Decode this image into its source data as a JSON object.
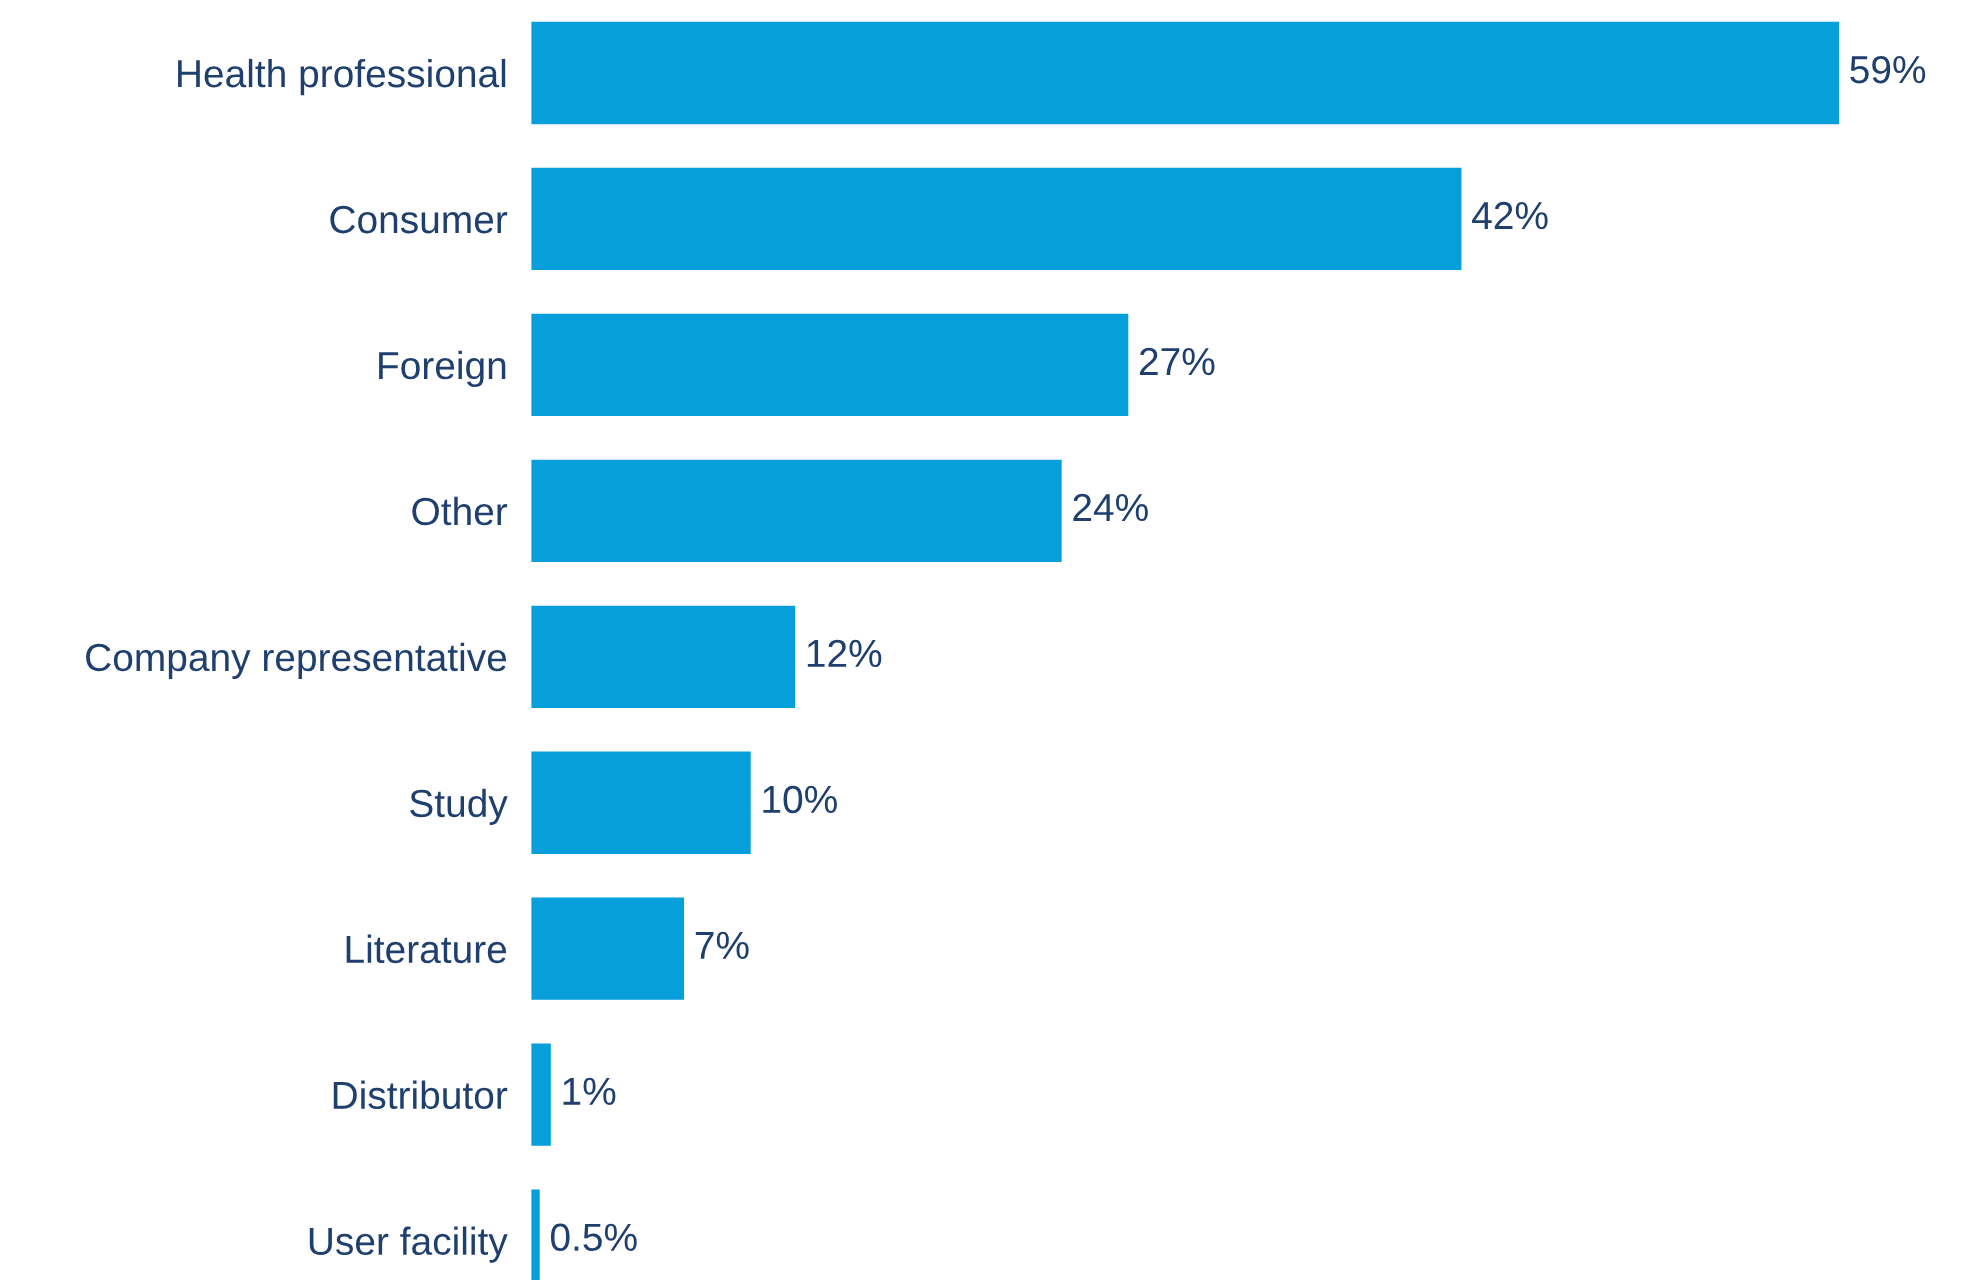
{
  "chart_data": {
    "type": "bar",
    "orientation": "horizontal",
    "categories": [
      "Health professional",
      "Consumer",
      "Foreign",
      "Other",
      "Company representative",
      "Study",
      "Literature",
      "Distributor",
      "User facility"
    ],
    "values": [
      59,
      42,
      27,
      24,
      12,
      10,
      7,
      1,
      0.5
    ],
    "value_labels": [
      "59%",
      "42%",
      "27%",
      "24%",
      "12%",
      "10%",
      "7%",
      "1%",
      "0.5%"
    ],
    "color": "#069fdc",
    "grid": false,
    "legend": false
  }
}
